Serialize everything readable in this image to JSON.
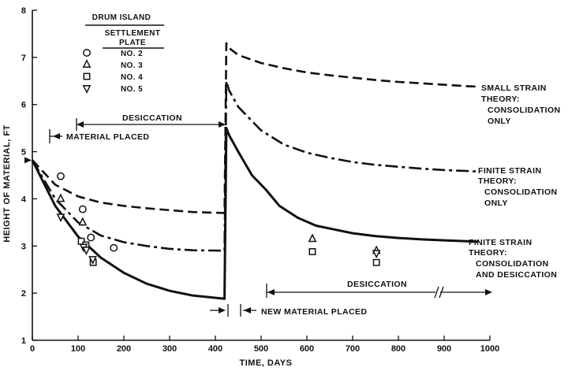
{
  "chart_data": {
    "type": "line",
    "xlabel": "TIME, DAYS",
    "ylabel": "HEIGHT OF MATERIAL, FT",
    "xlim": [
      0,
      1000
    ],
    "ylim": [
      1,
      8
    ],
    "x_ticks": [
      "0",
      "100",
      "200",
      "300",
      "400",
      "500",
      "600",
      "700",
      "800",
      "900",
      "1000"
    ],
    "y_ticks": [
      "1",
      "2",
      "3",
      "4",
      "5",
      "6",
      "7",
      "8"
    ],
    "grid": false,
    "series": [
      {
        "name": "SMALL STRAIN THEORY: CONSOLIDATION ONLY",
        "style": "dashed",
        "points": [
          [
            0,
            4.82
          ],
          [
            50,
            4.3
          ],
          [
            100,
            4.05
          ],
          [
            150,
            3.92
          ],
          [
            200,
            3.85
          ],
          [
            250,
            3.8
          ],
          [
            300,
            3.76
          ],
          [
            350,
            3.72
          ],
          [
            420,
            3.7
          ],
          [
            424,
            7.3
          ],
          [
            430,
            7.2
          ],
          [
            450,
            7.05
          ],
          [
            500,
            6.88
          ],
          [
            550,
            6.77
          ],
          [
            600,
            6.68
          ],
          [
            650,
            6.62
          ],
          [
            700,
            6.57
          ],
          [
            750,
            6.52
          ],
          [
            800,
            6.48
          ],
          [
            850,
            6.45
          ],
          [
            900,
            6.42
          ],
          [
            950,
            6.39
          ],
          [
            975,
            6.38
          ]
        ]
      },
      {
        "name": "FINITE STRAIN THEORY: CONSOLIDATION ONLY",
        "style": "dash-dot",
        "points": [
          [
            0,
            4.82
          ],
          [
            50,
            4.0
          ],
          [
            100,
            3.5
          ],
          [
            150,
            3.22
          ],
          [
            200,
            3.08
          ],
          [
            250,
            3.0
          ],
          [
            300,
            2.94
          ],
          [
            350,
            2.91
          ],
          [
            420,
            2.9
          ],
          [
            424,
            6.5
          ],
          [
            430,
            6.3
          ],
          [
            450,
            5.95
          ],
          [
            500,
            5.45
          ],
          [
            550,
            5.15
          ],
          [
            600,
            4.98
          ],
          [
            650,
            4.87
          ],
          [
            700,
            4.78
          ],
          [
            750,
            4.72
          ],
          [
            800,
            4.68
          ],
          [
            850,
            4.64
          ],
          [
            900,
            4.61
          ],
          [
            950,
            4.59
          ],
          [
            975,
            4.58
          ]
        ]
      },
      {
        "name": "FINITE STRAIN THEORY: CONSOLIDATION AND DESICCATION",
        "style": "solid",
        "points": [
          [
            0,
            4.82
          ],
          [
            50,
            3.85
          ],
          [
            100,
            3.2
          ],
          [
            150,
            2.75
          ],
          [
            200,
            2.43
          ],
          [
            250,
            2.2
          ],
          [
            300,
            2.05
          ],
          [
            350,
            1.95
          ],
          [
            420,
            1.88
          ],
          [
            424,
            5.5
          ],
          [
            430,
            5.35
          ],
          [
            450,
            5.0
          ],
          [
            480,
            4.5
          ],
          [
            510,
            4.2
          ],
          [
            540,
            3.85
          ],
          [
            580,
            3.6
          ],
          [
            620,
            3.43
          ],
          [
            660,
            3.35
          ],
          [
            700,
            3.27
          ],
          [
            750,
            3.21
          ],
          [
            800,
            3.17
          ],
          [
            850,
            3.14
          ],
          [
            900,
            3.12
          ],
          [
            950,
            3.1
          ],
          [
            975,
            3.09
          ]
        ]
      }
    ],
    "measured": {
      "title": "DRUM ISLAND",
      "subtitle_line1": "SETTLEMENT",
      "subtitle_line2": "PLATE",
      "plates": [
        {
          "label": "NO. 2",
          "marker": "circle",
          "points": [
            [
              62,
              4.48
            ],
            [
              110,
              3.78
            ],
            [
              128,
              3.18
            ],
            [
              178,
              2.96
            ]
          ]
        },
        {
          "label": "NO. 3",
          "marker": "triangle-up",
          "points": [
            [
              62,
              4.0
            ],
            [
              110,
              3.5
            ],
            [
              612,
              3.15
            ],
            [
              752,
              2.9
            ]
          ]
        },
        {
          "label": "NO. 4",
          "marker": "square",
          "points": [
            [
              107,
              3.1
            ],
            [
              117,
              3.02
            ],
            [
              133,
              2.65
            ],
            [
              612,
              2.88
            ],
            [
              752,
              2.65
            ]
          ]
        },
        {
          "label": "NO. 5",
          "marker": "triangle-down",
          "points": [
            [
              62,
              3.62
            ],
            [
              112,
              2.98
            ],
            [
              118,
              2.92
            ],
            [
              132,
              2.72
            ],
            [
              752,
              2.85
            ]
          ]
        }
      ]
    },
    "annotations": {
      "desiccation_1": "DESICCATION",
      "material_placed": "MATERIAL PLACED",
      "new_material_placed": "NEW MATERIAL PLACED",
      "desiccation_2": "DESICCATION",
      "small_strain_l1": "SMALL STRAIN",
      "small_strain_l2": "THEORY:",
      "small_strain_l3": "CONSOLIDATION",
      "small_strain_l4": "ONLY",
      "finite_cons_l1": "FINITE STRAIN",
      "finite_cons_l2": "THEORY:",
      "finite_cons_l3": "CONSOLIDATION",
      "finite_cons_l4": "ONLY",
      "finite_des_l1": "FINITE STRAIN",
      "finite_des_l2": "THEORY:",
      "finite_des_l3": "CONSOLIDATION",
      "finite_des_l4": "AND DESICCATION"
    },
    "colors": {
      "ink": "#111111",
      "background": "#ffffff"
    }
  }
}
